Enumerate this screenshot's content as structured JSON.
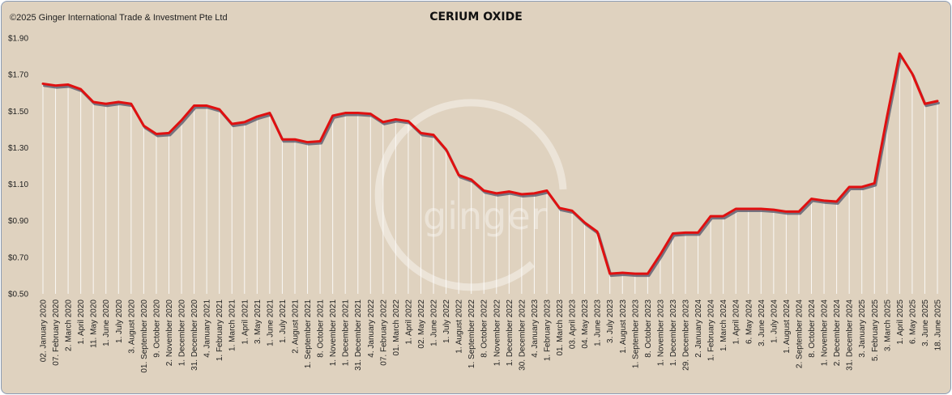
{
  "header": {
    "copyright": "©2025 Ginger International Trade & Investment Pte Ltd",
    "watermark": "ginger"
  },
  "colors": {
    "background": "#dfd2bf",
    "line": "#e01010",
    "shadow": "#5a5a6e",
    "drop": "#ffffff"
  },
  "chart_data": {
    "type": "line",
    "title": "CERIUM OXIDE",
    "xlabel": "",
    "ylabel": "",
    "ylim": [
      0.5,
      1.9
    ],
    "yticks": [
      "$0.50",
      "$0.70",
      "$0.90",
      "$1.10",
      "$1.30",
      "$1.50",
      "$1.70",
      "$1.90"
    ],
    "legend": "none",
    "grid": false,
    "x": [
      "02. January 2020",
      "07. February 2020",
      "2. March 2020",
      "1. April 2020",
      "11. May 2020",
      "1. June 2020",
      "1. July 2020",
      "3. August 2020",
      "01. September 2020",
      "9. October 2020",
      "2. November 2020",
      "1. December 2020",
      "31. December 2020",
      "4. January 2021",
      "1. February 2021",
      "1. March 2021",
      "1. April 2021",
      "3. May 2021",
      "1. June 2021",
      "1. July 2021",
      "2. August 2021",
      "1. September 2021",
      "8. October 2021",
      "1. November 2021",
      "1. December 2021",
      "31. December 2021",
      "4. January 2022",
      "07. February 2022",
      "01. March 2022",
      "1. April 2022",
      "02. May 2022",
      "1. June 2022",
      "1. July 2022",
      "1. August 2022",
      "1. September 2022",
      "8. October 2022",
      "1. November 2022",
      "1. December 2022",
      "30. December 2022",
      "4. January 2023",
      "1. February 2023",
      "01. March 2023",
      "03. April 2023",
      "04. May 2023",
      "1. June 2023",
      "3. July 2023",
      "1. August 2023",
      "1. September 2023",
      "8. October 2023",
      "1. November 2023",
      "1. December 2023",
      "29. December 2023",
      "2. January 2024",
      "1. February 2024",
      "1. March 2024",
      "1. April 2024",
      "6. May 2024",
      "3. June 2024",
      "1. July 2024",
      "1. August 2024",
      "2. September 2024",
      "8. October 2024",
      "1. November 2024",
      "2. December 2024",
      "31. December 2024",
      "3. January 2025",
      "5. February 2025",
      "3. March 2025",
      "1. April 2025",
      "6. May 2025",
      "3. June 2025",
      "18. June 2025"
    ],
    "series": [
      {
        "values": [
          1.65,
          1.64,
          1.645,
          1.62,
          1.55,
          1.54,
          1.55,
          1.54,
          1.42,
          1.375,
          1.38,
          1.45,
          1.53,
          1.53,
          1.51,
          1.43,
          1.44,
          1.47,
          1.49,
          1.345,
          1.345,
          1.33,
          1.335,
          1.475,
          1.49,
          1.49,
          1.485,
          1.44,
          1.455,
          1.445,
          1.38,
          1.37,
          1.29,
          1.15,
          1.125,
          1.065,
          1.05,
          1.06,
          1.045,
          1.05,
          1.065,
          0.97,
          0.955,
          0.89,
          0.84,
          0.61,
          0.615,
          0.61,
          0.61,
          0.715,
          0.83,
          0.835,
          0.835,
          0.925,
          0.925,
          0.965,
          0.965,
          0.965,
          0.96,
          0.95,
          0.95,
          1.02,
          1.01,
          1.005,
          1.085,
          1.085,
          1.105,
          1.47,
          1.815,
          1.705,
          1.54,
          1.555
        ]
      }
    ]
  }
}
